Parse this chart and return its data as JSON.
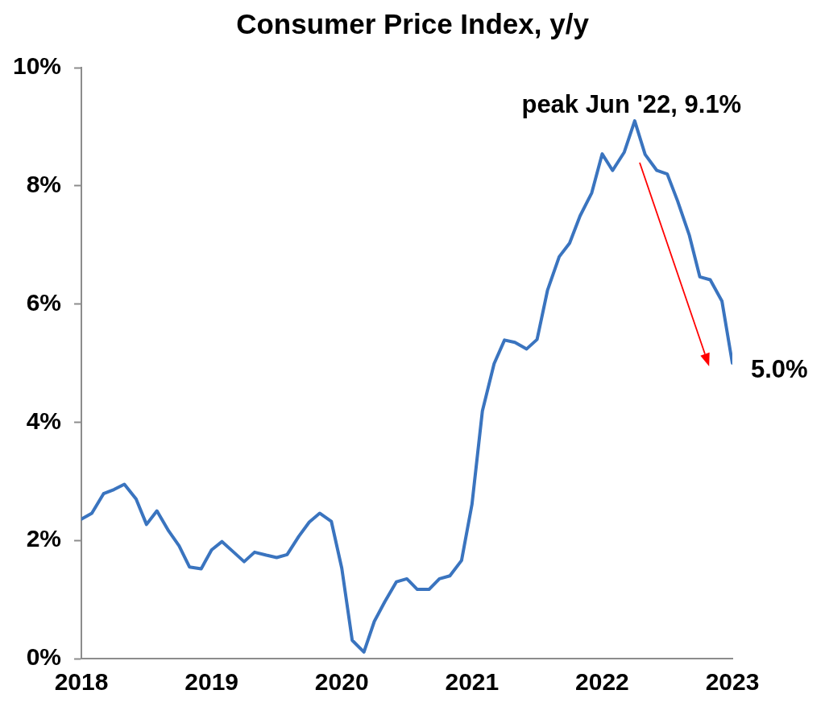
{
  "chart_data": {
    "type": "line",
    "title": "Consumer Price Index, y/y",
    "x": [
      2018,
      2018.08,
      2018.17,
      2018.25,
      2018.33,
      2018.42,
      2018.5,
      2018.58,
      2018.67,
      2018.75,
      2018.83,
      2018.92,
      2019,
      2019.08,
      2019.17,
      2019.25,
      2019.33,
      2019.42,
      2019.5,
      2019.58,
      2019.67,
      2019.75,
      2019.83,
      2019.92,
      2020,
      2020.08,
      2020.17,
      2020.25,
      2020.33,
      2020.42,
      2020.5,
      2020.58,
      2020.67,
      2020.75,
      2020.83,
      2020.92,
      2021,
      2021.08,
      2021.17,
      2021.25,
      2021.33,
      2021.42,
      2021.5,
      2021.58,
      2021.67,
      2021.75,
      2021.83,
      2021.92,
      2022,
      2022.08,
      2022.17,
      2022.25,
      2022.33,
      2022.42,
      2022.5,
      2022.58,
      2022.67,
      2022.75,
      2022.83,
      2022.92,
      2023
    ],
    "values": [
      2.36,
      2.46,
      2.79,
      2.86,
      2.95,
      2.7,
      2.27,
      2.5,
      2.16,
      1.91,
      1.55,
      1.52,
      1.84,
      1.98,
      1.8,
      1.64,
      1.8,
      1.75,
      1.71,
      1.76,
      2.07,
      2.31,
      2.46,
      2.32,
      1.53,
      0.31,
      0.11,
      0.63,
      0.96,
      1.3,
      1.35,
      1.17,
      1.17,
      1.35,
      1.4,
      1.66,
      2.61,
      4.19,
      4.99,
      5.39,
      5.35,
      5.24,
      5.4,
      6.23,
      6.8,
      7.03,
      7.49,
      7.88,
      8.54,
      8.26,
      8.57,
      9.1,
      8.53,
      8.26,
      8.2,
      7.74,
      7.16,
      6.46,
      6.41,
      6.05,
      5.0
    ],
    "color": "#3a74bf",
    "xlim": [
      2018,
      2023
    ],
    "xticks": [
      2018,
      2019,
      2020,
      2021,
      2022,
      2023
    ],
    "ylim": [
      0,
      10
    ],
    "yticks": [
      {
        "value": 0,
        "label": "0%"
      },
      {
        "value": 2,
        "label": "2%"
      },
      {
        "value": 4,
        "label": "4%"
      },
      {
        "value": 6,
        "label": "6%"
      },
      {
        "value": 8,
        "label": "8%"
      },
      {
        "value": 10,
        "label": "10%"
      }
    ],
    "grid": false,
    "legend": false,
    "marker": "none",
    "line_style": "solid",
    "annotations": [
      {
        "text": "peak Jun '22, 9.1%",
        "x": 2022.25,
        "y": 9.1
      },
      {
        "text": "5.0%",
        "x": 2023,
        "y": 5.0
      }
    ]
  }
}
